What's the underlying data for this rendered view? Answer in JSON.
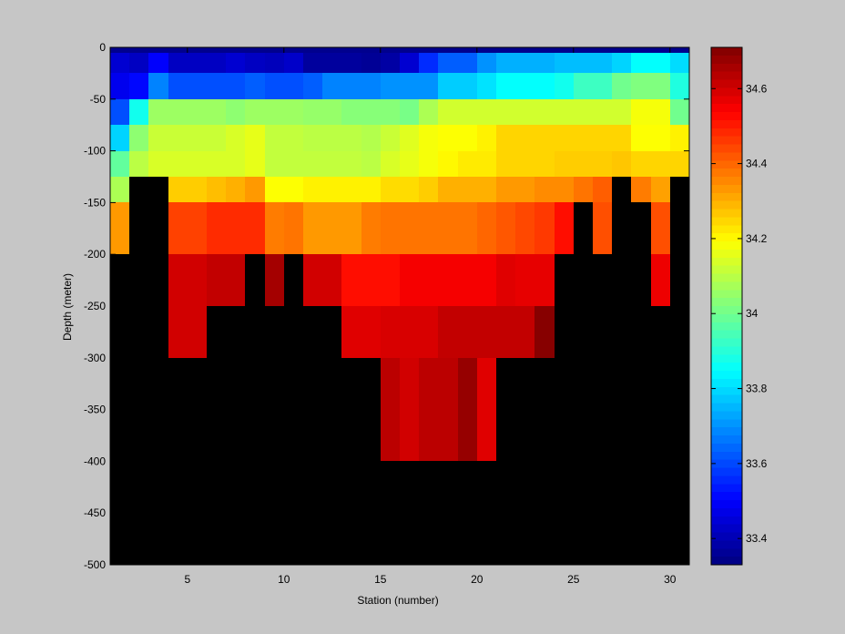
{
  "chart_data": {
    "type": "heatmap",
    "xlabel": "Station (number)",
    "ylabel": "Depth (meter)",
    "xlim": [
      1,
      31
    ],
    "ylim": [
      -500,
      0
    ],
    "x_ticks": [
      5,
      10,
      15,
      20,
      25,
      30
    ],
    "x_tick_labels": [
      "5",
      "10",
      "15",
      "20",
      "25",
      "30"
    ],
    "y_ticks": [
      0,
      -50,
      -100,
      -150,
      -200,
      -250,
      -300,
      -350,
      -400,
      -450,
      -500
    ],
    "y_tick_labels": [
      "0",
      "-50",
      "-100",
      "-150",
      "-200",
      "-250",
      "-300",
      "-350",
      "-400",
      "-450",
      "-500"
    ],
    "stations": [
      1,
      2,
      3,
      4,
      5,
      6,
      7,
      8,
      9,
      10,
      11,
      12,
      13,
      14,
      15,
      16,
      17,
      18,
      19,
      20,
      21,
      22,
      23,
      24,
      25,
      26,
      27,
      28,
      29,
      30,
      31
    ],
    "depth_bins": [
      [
        -5,
        0
      ],
      [
        -25,
        -5
      ],
      [
        -50,
        -25
      ],
      [
        -75,
        -50
      ],
      [
        -100,
        -75
      ],
      [
        -125,
        -100
      ],
      [
        -150,
        -125
      ],
      [
        -200,
        -150
      ],
      [
        -250,
        -200
      ],
      [
        -300,
        -250
      ],
      [
        -400,
        -300
      ],
      [
        -500,
        -400
      ]
    ],
    "no_data_color": "#000000",
    "background_color": "#c6c6c6",
    "salinity": [
      [
        33.35,
        33.35,
        33.35,
        33.35,
        33.35,
        33.35,
        33.35,
        33.35,
        33.35,
        33.35,
        33.35,
        33.35,
        33.35,
        33.35,
        33.35,
        33.35,
        33.35,
        33.35,
        33.35,
        33.35,
        33.35,
        33.35,
        33.35,
        33.35,
        33.35,
        33.35,
        33.35,
        33.35,
        33.35,
        33.35
      ],
      [
        33.44,
        33.42,
        33.5,
        33.42,
        33.42,
        33.42,
        33.44,
        33.42,
        33.41,
        33.43,
        33.37,
        33.37,
        33.37,
        33.36,
        33.38,
        33.44,
        33.56,
        33.63,
        33.63,
        33.7,
        33.74,
        33.74,
        33.74,
        33.76,
        33.76,
        33.76,
        33.79,
        33.85,
        33.85,
        33.8
      ],
      [
        33.48,
        33.51,
        33.68,
        33.61,
        33.61,
        33.61,
        33.61,
        33.63,
        33.61,
        33.61,
        33.63,
        33.68,
        33.68,
        33.68,
        33.7,
        33.7,
        33.7,
        33.78,
        33.78,
        33.81,
        33.85,
        33.85,
        33.85,
        33.87,
        33.93,
        33.93,
        34.0,
        34.02,
        34.02,
        33.89
      ],
      [
        33.61,
        33.87,
        34.06,
        34.06,
        34.06,
        34.06,
        34.04,
        34.06,
        34.06,
        34.06,
        34.05,
        34.05,
        34.03,
        34.03,
        34.03,
        34.01,
        34.08,
        34.13,
        34.13,
        34.13,
        34.13,
        34.13,
        34.13,
        34.13,
        34.13,
        34.13,
        34.13,
        34.18,
        34.18,
        34.0
      ],
      [
        33.79,
        34.04,
        34.12,
        34.12,
        34.12,
        34.12,
        34.14,
        34.16,
        34.11,
        34.11,
        34.1,
        34.1,
        34.1,
        34.09,
        34.12,
        34.15,
        34.18,
        34.19,
        34.19,
        34.21,
        34.25,
        34.25,
        34.25,
        34.25,
        34.25,
        34.25,
        34.25,
        34.19,
        34.19,
        34.21
      ],
      [
        33.98,
        34.1,
        34.14,
        34.14,
        34.14,
        34.14,
        34.14,
        34.16,
        34.11,
        34.11,
        34.11,
        34.11,
        34.11,
        34.1,
        34.14,
        34.16,
        34.18,
        34.2,
        34.22,
        34.22,
        34.25,
        34.25,
        34.25,
        34.26,
        34.26,
        34.26,
        34.27,
        34.25,
        34.25,
        34.25
      ],
      [
        34.08,
        null,
        null,
        34.26,
        34.26,
        34.28,
        34.3,
        34.33,
        34.19,
        34.19,
        34.21,
        34.21,
        34.21,
        34.21,
        34.24,
        34.24,
        34.26,
        34.3,
        34.3,
        34.3,
        34.33,
        34.33,
        34.35,
        34.35,
        34.38,
        34.41,
        null,
        34.37,
        34.32,
        null
      ],
      [
        34.33,
        null,
        null,
        34.45,
        34.45,
        34.48,
        34.48,
        34.48,
        34.37,
        34.38,
        34.33,
        34.33,
        34.33,
        34.37,
        34.38,
        34.38,
        34.38,
        34.38,
        34.38,
        34.4,
        34.42,
        34.44,
        34.46,
        34.52,
        null,
        34.43,
        null,
        null,
        34.43,
        null
      ],
      [
        null,
        null,
        null,
        34.6,
        34.6,
        34.62,
        34.62,
        null,
        34.66,
        null,
        34.6,
        34.6,
        34.52,
        34.52,
        34.52,
        34.55,
        34.55,
        34.55,
        34.55,
        34.55,
        34.58,
        34.57,
        34.57,
        null,
        null,
        null,
        null,
        null,
        34.56,
        null
      ],
      [
        null,
        null,
        null,
        34.6,
        34.6,
        null,
        null,
        null,
        null,
        null,
        null,
        null,
        34.58,
        34.58,
        34.59,
        34.59,
        34.59,
        34.62,
        34.62,
        34.62,
        34.62,
        34.62,
        34.7,
        null,
        null,
        null,
        null,
        null,
        null,
        null
      ],
      [
        null,
        null,
        null,
        null,
        null,
        null,
        null,
        null,
        null,
        null,
        null,
        null,
        null,
        null,
        34.63,
        34.6,
        34.63,
        34.63,
        34.68,
        34.58,
        null,
        null,
        null,
        null,
        null,
        null,
        null,
        null,
        null,
        null
      ],
      [
        null,
        null,
        null,
        null,
        null,
        null,
        null,
        null,
        null,
        null,
        null,
        null,
        null,
        null,
        null,
        null,
        null,
        null,
        null,
        null,
        null,
        null,
        null,
        null,
        null,
        null,
        null,
        null,
        null,
        null
      ]
    ],
    "colorbar": {
      "range": [
        33.33,
        34.71
      ],
      "ticks": [
        33.4,
        33.6,
        33.8,
        34,
        34.2,
        34.4,
        34.6
      ],
      "tick_labels": [
        "33.4",
        "33.6",
        "33.8",
        "34",
        "34.2",
        "34.4",
        "34.6"
      ],
      "colormap": "jet",
      "placement": "right"
    },
    "grid": false
  }
}
